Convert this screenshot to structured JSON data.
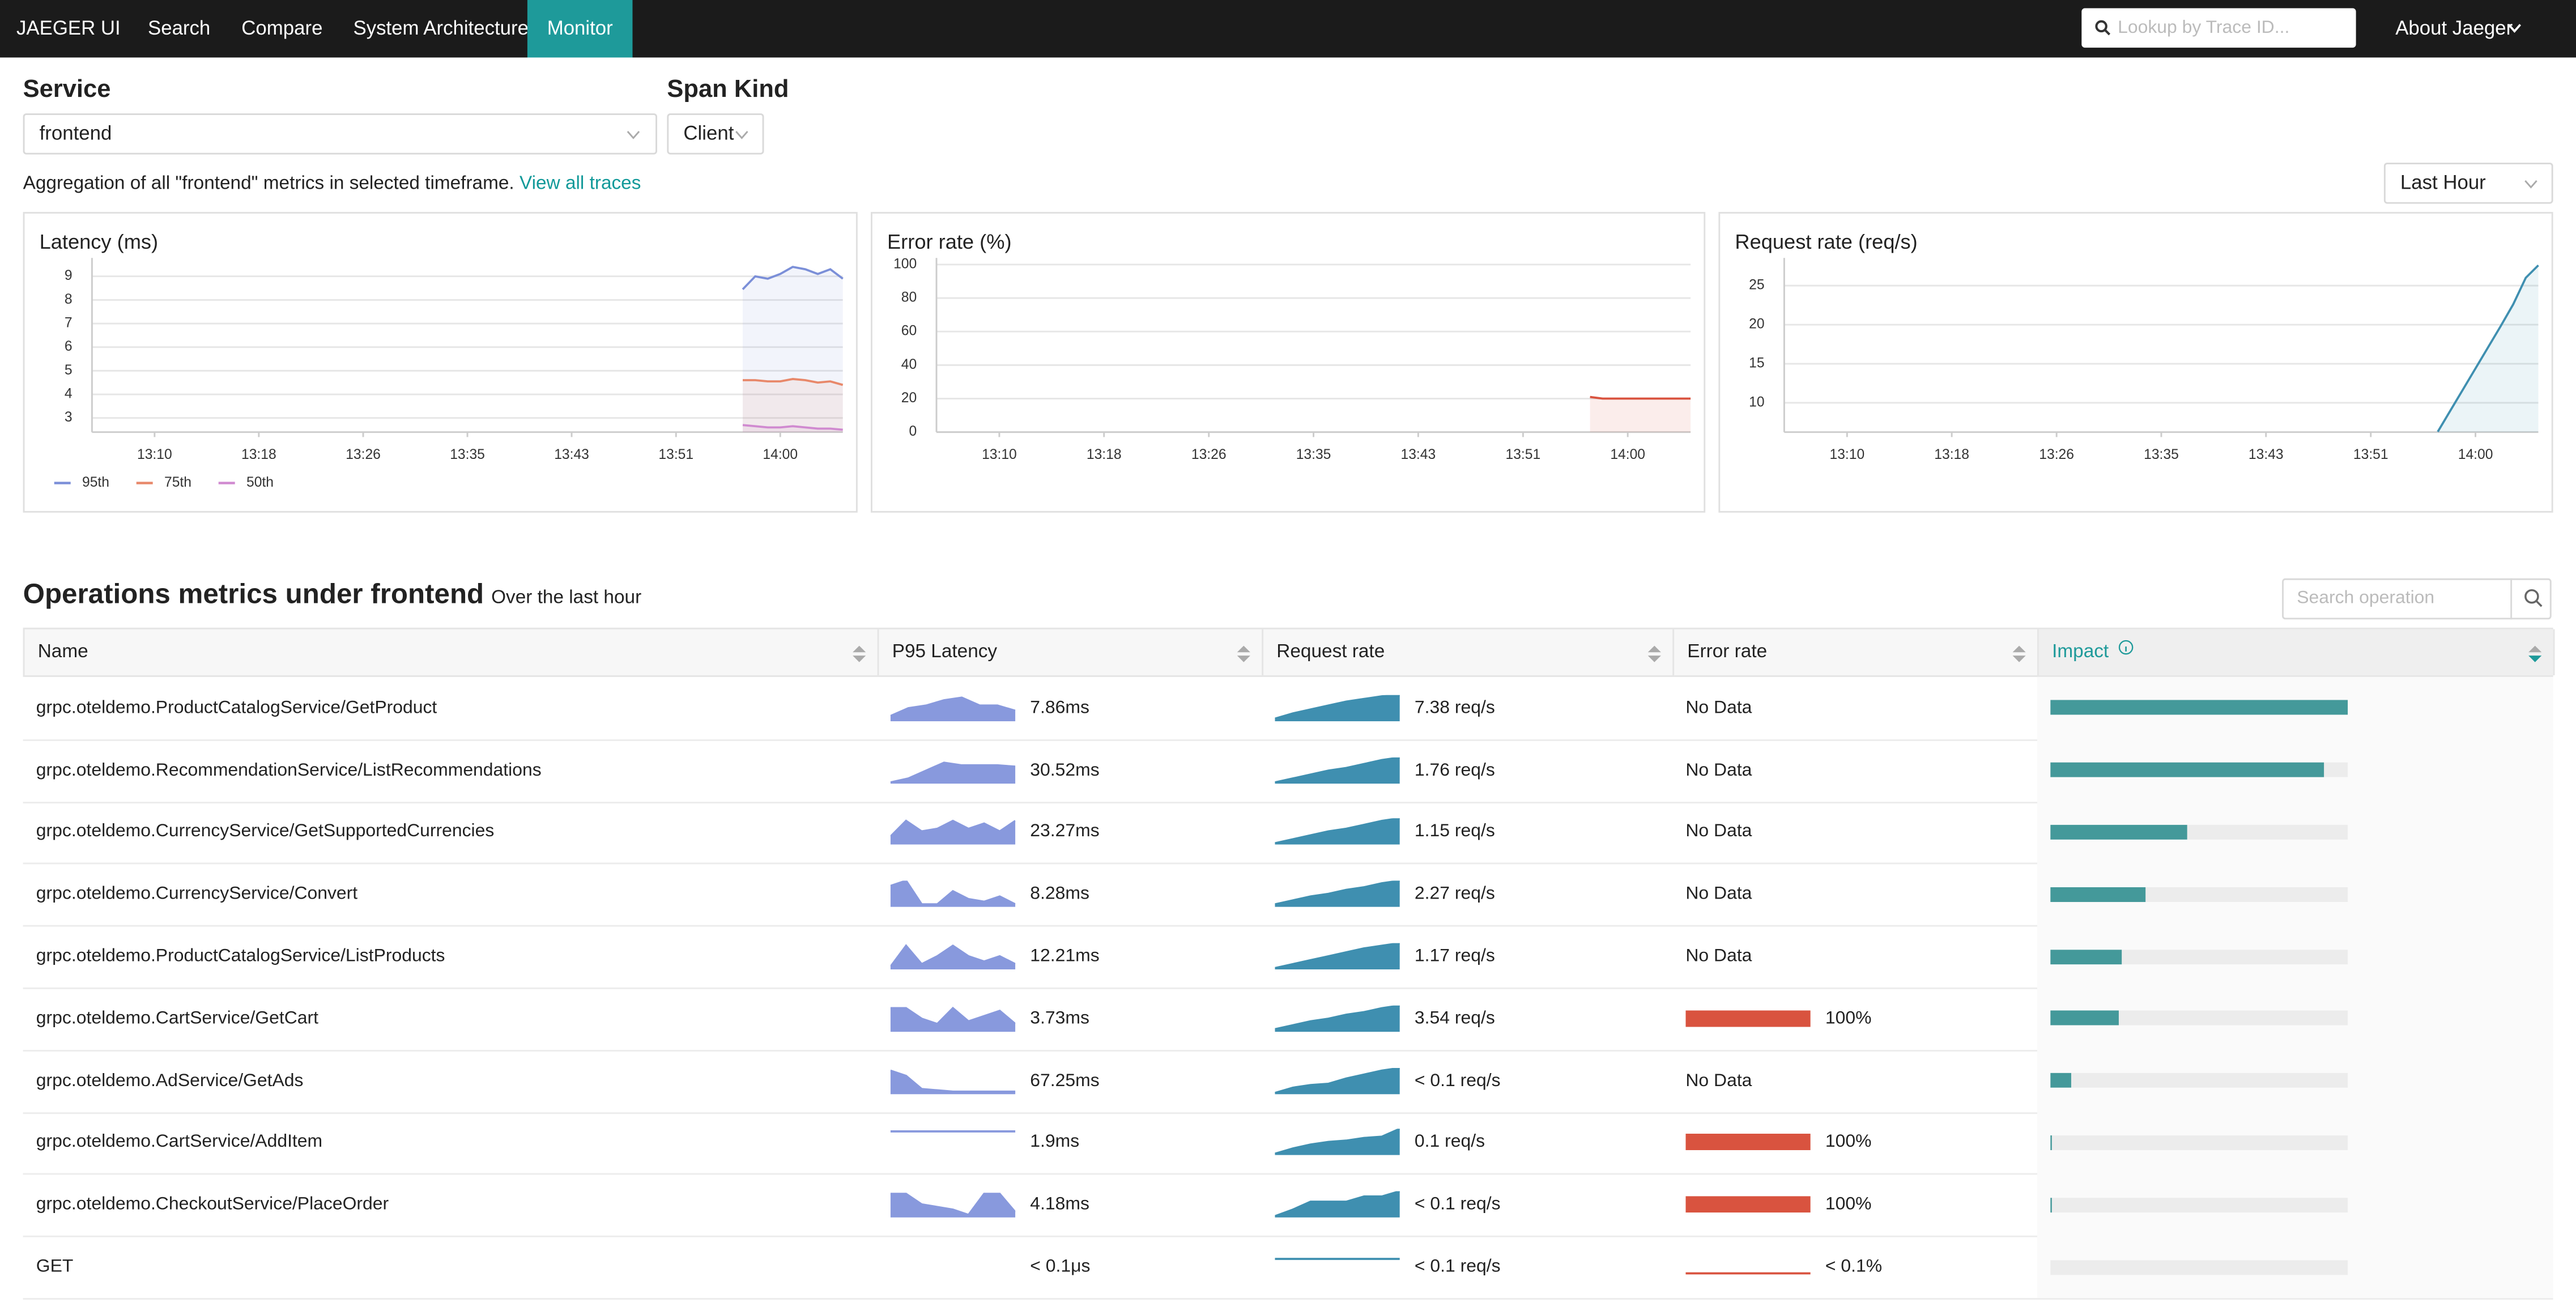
{
  "nav": {
    "brand": "JAEGER UI",
    "links": [
      "Search",
      "Compare",
      "System Architecture",
      "Monitor"
    ],
    "search_placeholder": "Lookup by Trace ID...",
    "about": "About Jaeger"
  },
  "filters": {
    "service_label": "Service",
    "service": "frontend",
    "span_kind_label": "Span Kind",
    "span_kind": "Client"
  },
  "summary": {
    "text": "Aggregation of all \"frontend\" metrics in selected timeframe.",
    "link": "View all traces",
    "timeframe": "Last Hour"
  },
  "charts": [
    {
      "type": "line",
      "title": "Latency (ms)",
      "x": [
        837,
        838,
        839,
        840,
        841,
        842,
        843,
        844,
        845
      ],
      "xlim": [
        785,
        845
      ],
      "xticks": [
        {
          "value": 790,
          "label": "13:10"
        },
        {
          "value": 798.33,
          "label": "13:18"
        },
        {
          "value": 806.67,
          "label": "13:26"
        },
        {
          "value": 815,
          "label": "13:35"
        },
        {
          "value": 823.33,
          "label": "13:43"
        },
        {
          "value": 831.67,
          "label": "13:51"
        },
        {
          "value": 840,
          "label": "14:00"
        }
      ],
      "ylim": [
        2.4,
        9.5
      ],
      "yticks": [
        3,
        4,
        5,
        6,
        7,
        8,
        9
      ],
      "grid": true,
      "legend": "bottom-left",
      "series": [
        {
          "name": "95th",
          "color": "#7b8fd8",
          "values": [
            8.45,
            9.0,
            8.9,
            9.1,
            9.4,
            9.3,
            9.1,
            9.3,
            8.9
          ]
        },
        {
          "name": "75th",
          "color": "#e8886a",
          "values": [
            4.6,
            4.6,
            4.55,
            4.55,
            4.65,
            4.6,
            4.5,
            4.55,
            4.4
          ]
        },
        {
          "name": "50th",
          "color": "#d08ad0",
          "values": [
            2.7,
            2.65,
            2.6,
            2.6,
            2.65,
            2.6,
            2.55,
            2.55,
            2.5
          ]
        }
      ]
    },
    {
      "type": "line",
      "title": "Error rate (%)",
      "x": [
        837,
        838,
        839,
        840,
        841,
        842,
        843,
        844,
        845
      ],
      "xlim": [
        785,
        845
      ],
      "xticks": [
        {
          "value": 790,
          "label": "13:10"
        },
        {
          "value": 798.33,
          "label": "13:18"
        },
        {
          "value": 806.67,
          "label": "13:26"
        },
        {
          "value": 815,
          "label": "13:35"
        },
        {
          "value": 823.33,
          "label": "13:43"
        },
        {
          "value": 831.67,
          "label": "13:51"
        },
        {
          "value": 840,
          "label": "14:00"
        }
      ],
      "ylim": [
        0,
        100
      ],
      "yticks": [
        0,
        20,
        40,
        60,
        80,
        100
      ],
      "grid": true,
      "color": "#d9533f",
      "values": [
        21,
        20,
        20,
        20,
        20,
        20,
        20,
        20,
        20
      ]
    },
    {
      "type": "line",
      "title": "Request rate (req/s)",
      "x": [
        837,
        838,
        839,
        840,
        841,
        842,
        843,
        844,
        845
      ],
      "xlim": [
        785,
        845
      ],
      "xticks": [
        {
          "value": 790,
          "label": "13:10"
        },
        {
          "value": 798.33,
          "label": "13:18"
        },
        {
          "value": 806.67,
          "label": "13:26"
        },
        {
          "value": 815,
          "label": "13:35"
        },
        {
          "value": 823.33,
          "label": "13:43"
        },
        {
          "value": 831.67,
          "label": "13:51"
        },
        {
          "value": 840,
          "label": "14:00"
        }
      ],
      "ylim": [
        6.25,
        27.7
      ],
      "yticks": [
        10,
        15,
        20,
        25
      ],
      "grid": true,
      "color": "#3f8fb0",
      "values": [
        6.3,
        9,
        11.7,
        14.4,
        17.1,
        19.8,
        22.6,
        26,
        27.6
      ]
    }
  ],
  "operations": {
    "title": "Operations metrics under frontend",
    "subtitle": "Over the last hour",
    "search_placeholder": "Search operation"
  },
  "table": {
    "columns": [
      "Name",
      "P95 Latency",
      "Request rate",
      "Error rate",
      "Impact"
    ],
    "rows": [
      {
        "name": "grpc.oteldemo.ProductCatalogService/GetProduct",
        "latency": "7.86ms",
        "latency_trend": [
          0.2,
          0.5,
          0.6,
          0.8,
          0.9,
          0.6,
          0.6,
          0.4
        ],
        "request_rate": "7.38 req/s",
        "request_trend": [
          0.1,
          0.3,
          0.45,
          0.6,
          0.75,
          0.85,
          0.95,
          1
        ],
        "error_rate": "No Data",
        "impact": 1
      },
      {
        "name": "grpc.oteldemo.RecommendationService/ListRecommendations",
        "latency": "30.52ms",
        "latency_trend": [
          0.05,
          0.2,
          0.5,
          0.8,
          0.7,
          0.7,
          0.7,
          0.65
        ],
        "request_rate": "1.76 req/s",
        "request_trend": [
          0.05,
          0.2,
          0.35,
          0.5,
          0.6,
          0.75,
          0.9,
          1
        ],
        "error_rate": "No Data",
        "impact": 0.92
      },
      {
        "name": "grpc.oteldemo.CurrencyService/GetSupportedCurrencies",
        "latency": "23.27ms",
        "latency_trend": [
          0.3,
          0.9,
          0.5,
          0.6,
          0.9,
          0.6,
          0.8,
          0.5,
          0.9
        ],
        "request_rate": "1.15 req/s",
        "request_trend": [
          0.05,
          0.2,
          0.35,
          0.5,
          0.6,
          0.75,
          0.9,
          1
        ],
        "error_rate": "No Data",
        "impact": 0.46
      },
      {
        "name": "grpc.oteldemo.CurrencyService/Convert",
        "latency": "8.28ms",
        "latency_trend": [
          0.8,
          1,
          0.1,
          0.1,
          0.6,
          0.3,
          0.2,
          0.4,
          0.1
        ],
        "request_rate": "2.27 req/s",
        "request_trend": [
          0.1,
          0.25,
          0.4,
          0.5,
          0.65,
          0.75,
          0.9,
          1
        ],
        "error_rate": "No Data",
        "impact": 0.32
      },
      {
        "name": "grpc.oteldemo.ProductCatalogService/ListProducts",
        "latency": "12.21ms",
        "latency_trend": [
          0.1,
          0.9,
          0.2,
          0.5,
          0.9,
          0.5,
          0.3,
          0.5,
          0.2
        ],
        "request_rate": "1.17 req/s",
        "request_trend": [
          0.05,
          0.2,
          0.35,
          0.5,
          0.65,
          0.8,
          0.9,
          1
        ],
        "error_rate": "No Data",
        "impact": 0.24
      },
      {
        "name": "grpc.oteldemo.CartService/GetCart",
        "latency": "3.73ms",
        "latency_trend": [
          0.9,
          0.9,
          0.5,
          0.3,
          0.9,
          0.4,
          0.6,
          0.8,
          0.3
        ],
        "request_rate": "3.54 req/s",
        "request_trend": [
          0.1,
          0.25,
          0.4,
          0.5,
          0.65,
          0.75,
          0.9,
          1
        ],
        "error_rate": "100%",
        "error_value": 100,
        "impact": 0.23
      },
      {
        "name": "grpc.oteldemo.AdService/GetAds",
        "latency": "67.25ms",
        "latency_trend": [
          0.9,
          0.7,
          0.2,
          0.15,
          0.1,
          0.1,
          0.1,
          0.1,
          0.1
        ],
        "request_rate": "< 0.1 req/s",
        "request_trend": [
          0.05,
          0.25,
          0.35,
          0.4,
          0.6,
          0.75,
          0.9,
          1
        ],
        "error_rate": "No Data",
        "impact": 0.07
      },
      {
        "name": "grpc.oteldemo.CartService/AddItem",
        "latency": "1.9ms",
        "latency_trend": [
          0.9,
          0.9,
          0.9,
          0.9,
          0.9,
          0.9,
          0.9,
          0.9
        ],
        "request_rate": "0.1 req/s",
        "request_trend": [
          0.05,
          0.25,
          0.4,
          0.5,
          0.55,
          0.65,
          0.7,
          1
        ],
        "error_rate": "100%",
        "error_value": 100,
        "impact": 0.005
      },
      {
        "name": "grpc.oteldemo.CheckoutService/PlaceOrder",
        "latency": "4.18ms",
        "latency_trend": [
          0.9,
          0.9,
          0.5,
          0.4,
          0.3,
          0.1,
          0.9,
          0.9,
          0.2
        ],
        "request_rate": "< 0.1 req/s",
        "request_trend": [
          0.05,
          0.3,
          0.6,
          0.6,
          0.6,
          0.8,
          0.8,
          1
        ],
        "error_rate": "100%",
        "error_value": 100,
        "impact": 0.005
      },
      {
        "name": "GET",
        "latency": "< 0.1μs",
        "request_rate": "< 0.1 req/s",
        "request_trend": [
          0.8,
          0.8,
          0.8,
          0.8,
          0.8,
          0.8,
          0.8,
          0.8
        ],
        "error_rate": "< 0.1%",
        "error_trend": [
          0.1,
          0.1,
          0.1,
          0.1,
          0.1,
          0.1,
          0.1,
          0.1
        ],
        "impact": 0
      }
    ]
  }
}
